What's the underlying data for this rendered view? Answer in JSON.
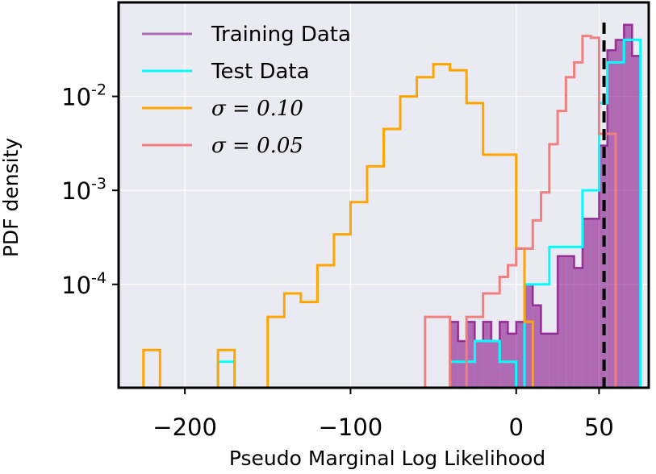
{
  "chart_data": {
    "type": "histogram",
    "title": "",
    "xlabel": "Pseudo Marginal Log Likelihood",
    "ylabel": "PDF density",
    "xlim": [
      -240,
      80
    ],
    "ylim_log10": [
      -5.1,
      -1.0
    ],
    "yscale": "log",
    "grid": true,
    "legend_location": "top-left",
    "x_ticks": [
      {
        "value": -200,
        "label": "−200"
      },
      {
        "value": -100,
        "label": "−100"
      },
      {
        "value": 0,
        "label": "0"
      },
      {
        "value": 50,
        "label": "50"
      }
    ],
    "y_ticks": [
      {
        "log10": -2,
        "base": "10",
        "exp": "-2"
      },
      {
        "log10": -3,
        "base": "10",
        "exp": "-3"
      },
      {
        "log10": -4,
        "base": "10",
        "exp": "-4"
      }
    ],
    "marker_line": {
      "x": 53,
      "style": "dashed",
      "color": "#000000"
    },
    "series": [
      {
        "name": "Training Data",
        "style": "filled",
        "color": "#800080",
        "edges": [
          -40,
          -35,
          -30,
          -25,
          -20,
          -15,
          -10,
          -5,
          0,
          5,
          10,
          15,
          20,
          25,
          30,
          35,
          40,
          45,
          50,
          55,
          60,
          65,
          70,
          75
        ],
        "values": [
          4e-05,
          2.5e-05,
          4e-05,
          2.5e-05,
          4e-05,
          2.5e-05,
          4e-05,
          3e-05,
          4e-05,
          0.0001,
          6e-05,
          3e-05,
          3e-05,
          0.0002,
          0.0002,
          0.00015,
          0.0005,
          0.0005,
          0.003,
          0.031,
          0.04,
          0.058,
          0.027
        ]
      },
      {
        "name": "Test Data",
        "style": "step",
        "color": "#00FFFF",
        "edges": [
          -180,
          -170,
          -40,
          -25,
          -10,
          0,
          5,
          10,
          20,
          30,
          40,
          45,
          50,
          55,
          60,
          65,
          70,
          75
        ],
        "values": [
          1.5e-05,
          0,
          1.5e-05,
          2.5e-05,
          1.5e-05,
          0,
          0.0001,
          0.0001,
          0.00025,
          0.00025,
          0.001,
          0.001,
          0.0085,
          0.023,
          0.023,
          0.04,
          0.04
        ]
      },
      {
        "name": "σ = 0.10",
        "style": "step",
        "color": "#FFA500",
        "edges": [
          -225,
          -215,
          -180,
          -170,
          -150,
          -140,
          -130,
          -120,
          -110,
          -100,
          -90,
          -80,
          -70,
          -60,
          -50,
          -40,
          -30,
          -20,
          -10,
          0,
          5,
          10
        ],
        "values": [
          2e-05,
          0,
          2e-05,
          0,
          4.5e-05,
          8e-05,
          6.5e-05,
          0.00016,
          0.00034,
          0.00075,
          0.0018,
          0.0045,
          0.01,
          0.016,
          0.022,
          0.019,
          0.0085,
          0.0024,
          0.0024,
          0.00024,
          4e-05
        ]
      },
      {
        "name": "σ = 0.05",
        "style": "step",
        "color": "#F08080",
        "edges": [
          -55,
          -50,
          -45,
          -40,
          -30,
          -25,
          -20,
          -15,
          -10,
          -5,
          0,
          5,
          10,
          15,
          20,
          25,
          30,
          35,
          40,
          45,
          50,
          55,
          60,
          65
        ],
        "values": [
          4.5e-05,
          4.5e-05,
          4.5e-05,
          0,
          4.5e-05,
          4.5e-05,
          8e-05,
          8e-05,
          0.00012,
          0.00016,
          0.00024,
          0.00024,
          0.00048,
          0.00095,
          0.0031,
          0.007,
          0.016,
          0.023,
          0.044,
          0.042,
          0.004,
          0.004,
          0
        ]
      }
    ]
  }
}
